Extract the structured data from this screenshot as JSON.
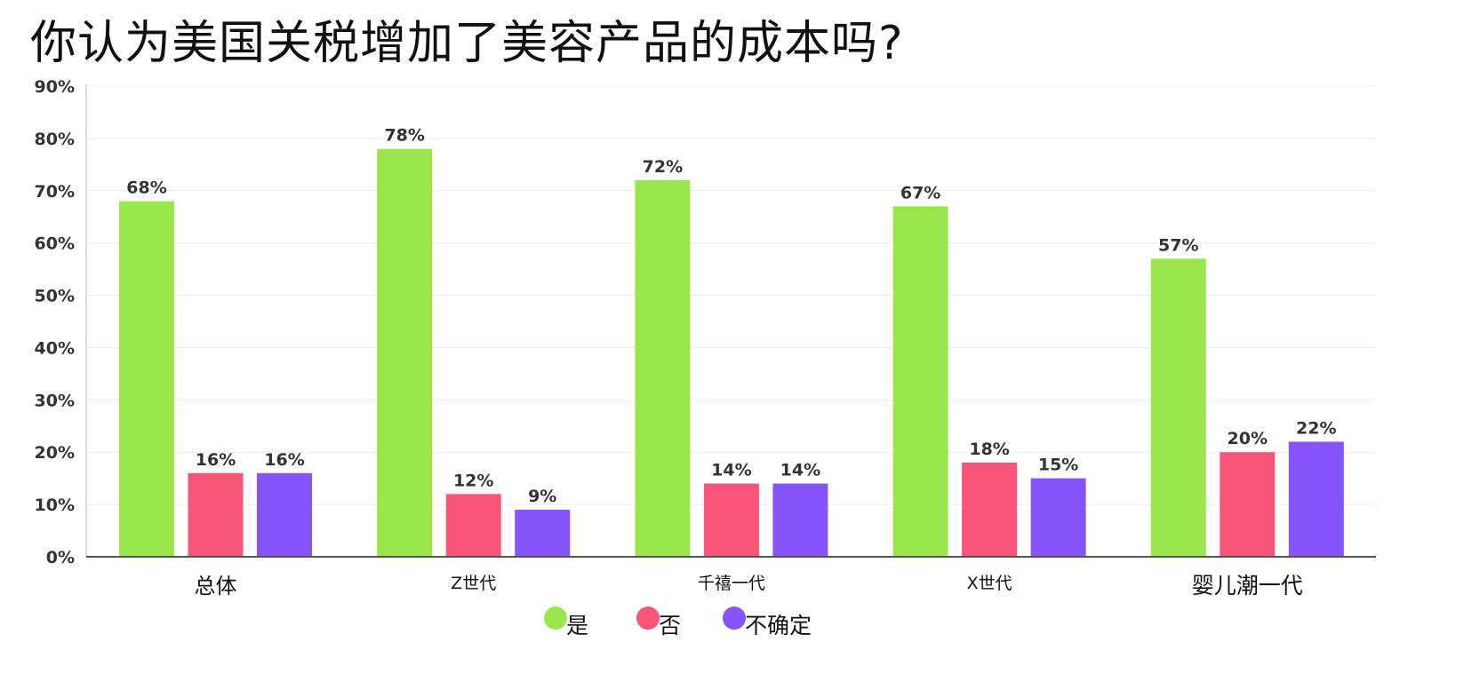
{
  "chart_data": {
    "type": "bar",
    "title": "你认为美国关税增加了美容产品的成本吗?",
    "categories": [
      "总体",
      "Z世代",
      "千禧一代",
      "X世代",
      "婴儿潮一代"
    ],
    "series": [
      {
        "name": "是",
        "color": "#99e64d",
        "values": [
          68,
          78,
          72,
          67,
          57
        ]
      },
      {
        "name": "否",
        "color": "#f65478",
        "values": [
          16,
          12,
          14,
          18,
          20
        ]
      },
      {
        "name": "不确定",
        "color": "#8555fb",
        "values": [
          16,
          9,
          14,
          15,
          22
        ]
      }
    ],
    "value_suffix": "%",
    "ylim": [
      0,
      90
    ],
    "yticks": [
      0,
      10,
      20,
      30,
      40,
      50,
      60,
      70,
      80,
      90
    ],
    "ytick_labels": [
      "0%",
      "10%",
      "20%",
      "30%",
      "40%",
      "50%",
      "60%",
      "70%",
      "80%",
      "90%"
    ],
    "grid": true,
    "legend": "bottom-center",
    "xlabel": "",
    "ylabel": ""
  }
}
